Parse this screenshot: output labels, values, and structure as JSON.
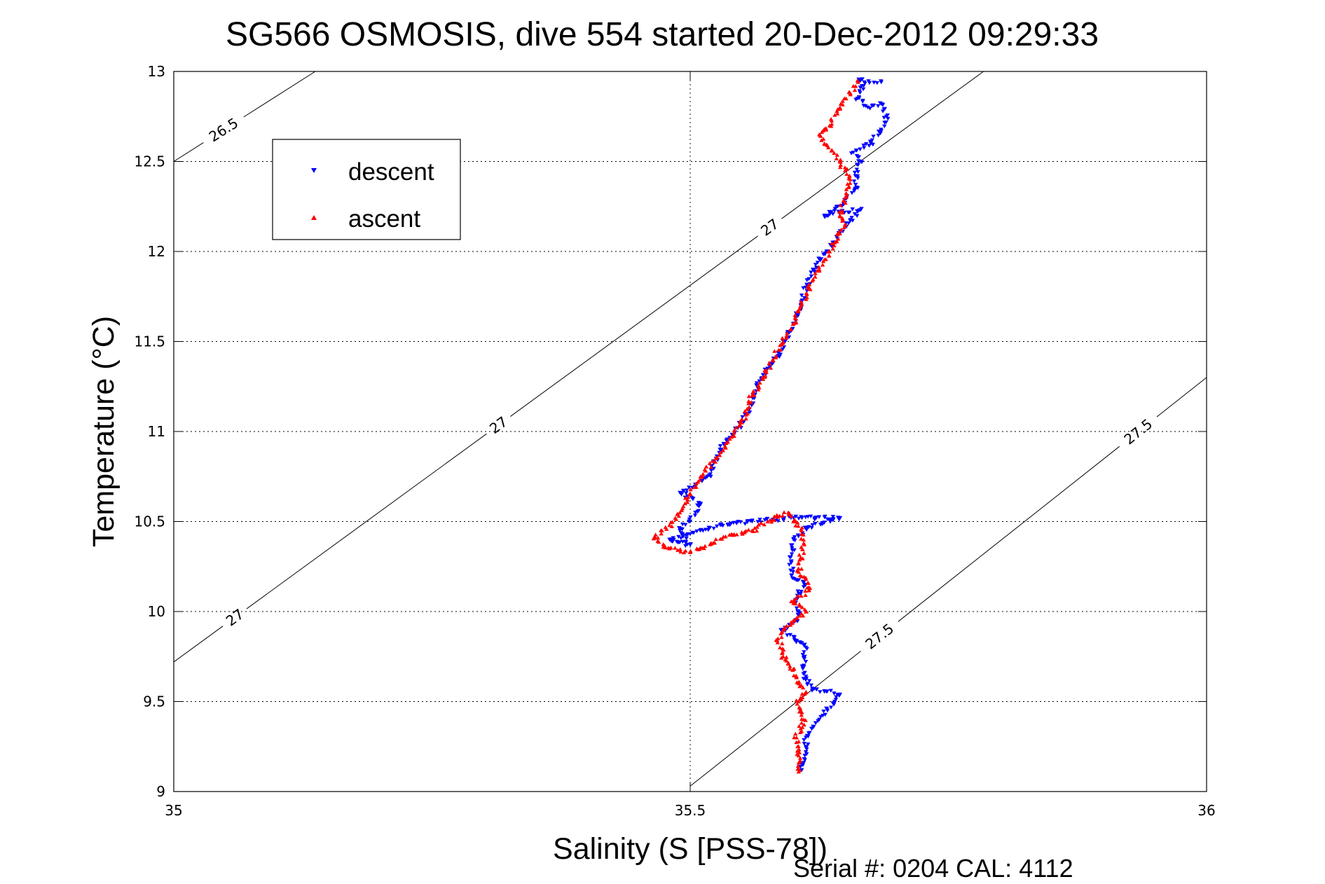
{
  "chart_data": {
    "type": "scatter",
    "title": "SG566 OSMOSIS, dive 554 started 20-Dec-2012 09:29:33",
    "xlabel": "Salinity (S [PSS-78])",
    "ylabel": "Temperature (°C)",
    "xlim": [
      35,
      36
    ],
    "ylim": [
      9,
      13
    ],
    "xticks": [
      "35",
      "35.5",
      "36"
    ],
    "yticks": [
      "9",
      "9.5",
      "10",
      "10.5",
      "11",
      "11.5",
      "12",
      "12.5",
      "13"
    ],
    "grid": true,
    "legend_position": "top-left",
    "footer": "Serial #: 0204  CAL: 4112",
    "contours": [
      {
        "label": "26.5",
        "points": [
          [
            35.0,
            12.5
          ],
          [
            35.137,
            13.0
          ]
        ],
        "labels": [
          {
            "text": "26.5",
            "x": 35.05,
            "y": 12.66
          }
        ]
      },
      {
        "label": "27",
        "points": [
          [
            35.0,
            9.72
          ],
          [
            35.784,
            13.0
          ]
        ],
        "labels": [
          {
            "text": "27",
            "x": 35.06,
            "y": 9.96
          },
          {
            "text": "27",
            "x": 35.31,
            "y": 11.07
          },
          {
            "text": "27",
            "x": 35.575,
            "y": 12.15
          }
        ]
      },
      {
        "label": "27.5",
        "points": [
          [
            35.5,
            9.03
          ],
          [
            36.0,
            11.3
          ]
        ],
        "labels": [
          {
            "text": "27.5",
            "x": 35.685,
            "y": 9.85
          },
          {
            "text": "27.5",
            "x": 35.935,
            "y": 10.99
          }
        ]
      }
    ],
    "series": [
      {
        "name": "descent",
        "color": "#0000ff",
        "marker": "triangle-down",
        "track": [
          [
            35.608,
            9.12
          ],
          [
            35.612,
            9.2
          ],
          [
            35.612,
            9.3
          ],
          [
            35.625,
            9.4
          ],
          [
            35.64,
            9.5
          ],
          [
            35.645,
            9.54
          ],
          [
            35.62,
            9.57
          ],
          [
            35.612,
            9.62
          ],
          [
            35.61,
            9.7
          ],
          [
            35.612,
            9.8
          ],
          [
            35.6,
            9.86
          ],
          [
            35.59,
            9.9
          ],
          [
            35.602,
            9.95
          ],
          [
            35.605,
            10.0
          ],
          [
            35.6,
            10.05
          ],
          [
            35.605,
            10.1
          ],
          [
            35.612,
            10.15
          ],
          [
            35.598,
            10.2
          ],
          [
            35.598,
            10.28
          ],
          [
            35.6,
            10.4
          ],
          [
            35.615,
            10.47
          ],
          [
            35.645,
            10.52
          ],
          [
            35.6,
            10.52
          ],
          [
            35.56,
            10.5
          ],
          [
            35.53,
            10.48
          ],
          [
            35.5,
            10.43
          ],
          [
            35.48,
            10.4
          ],
          [
            35.5,
            10.37
          ],
          [
            35.49,
            10.45
          ],
          [
            35.5,
            10.5
          ],
          [
            35.51,
            10.6
          ],
          [
            35.49,
            10.66
          ],
          [
            35.52,
            10.75
          ],
          [
            35.525,
            10.85
          ],
          [
            35.535,
            10.95
          ],
          [
            35.55,
            11.05
          ],
          [
            35.56,
            11.15
          ],
          [
            35.565,
            11.25
          ],
          [
            35.575,
            11.35
          ],
          [
            35.585,
            11.42
          ],
          [
            35.592,
            11.5
          ],
          [
            35.6,
            11.6
          ],
          [
            35.607,
            11.7
          ],
          [
            35.612,
            11.8
          ],
          [
            35.62,
            11.9
          ],
          [
            35.632,
            12.0
          ],
          [
            35.645,
            12.1
          ],
          [
            35.655,
            12.17
          ],
          [
            35.665,
            12.23
          ],
          [
            35.645,
            12.22
          ],
          [
            35.63,
            12.2
          ],
          [
            35.65,
            12.27
          ],
          [
            35.66,
            12.35
          ],
          [
            35.66,
            12.42
          ],
          [
            35.665,
            12.5
          ],
          [
            35.658,
            12.55
          ],
          [
            35.675,
            12.6
          ],
          [
            35.685,
            12.67
          ],
          [
            35.69,
            12.75
          ],
          [
            35.685,
            12.82
          ],
          [
            35.672,
            12.8
          ],
          [
            35.662,
            12.85
          ],
          [
            35.668,
            12.92
          ],
          [
            35.665,
            12.95
          ],
          [
            35.685,
            12.94
          ]
        ],
        "values": [
          [
            35.608,
            9.12
          ],
          [
            35.61,
            9.16
          ],
          [
            35.611,
            9.2
          ],
          [
            35.612,
            9.25
          ],
          [
            35.612,
            9.3
          ],
          [
            35.618,
            9.35
          ],
          [
            35.625,
            9.4
          ],
          [
            35.633,
            9.45
          ],
          [
            35.64,
            9.5
          ],
          [
            35.645,
            9.54
          ],
          [
            35.632,
            9.555
          ],
          [
            35.62,
            9.57
          ],
          [
            35.614,
            9.6
          ],
          [
            35.612,
            9.62
          ],
          [
            35.611,
            9.66
          ],
          [
            35.61,
            9.7
          ],
          [
            35.611,
            9.75
          ],
          [
            35.612,
            9.8
          ],
          [
            35.606,
            9.83
          ],
          [
            35.6,
            9.86
          ],
          [
            35.59,
            9.9
          ],
          [
            35.596,
            9.925
          ],
          [
            35.602,
            9.95
          ],
          [
            35.605,
            10.0
          ],
          [
            35.6,
            10.05
          ],
          [
            35.605,
            10.1
          ],
          [
            35.612,
            10.15
          ],
          [
            35.605,
            10.175
          ],
          [
            35.598,
            10.2
          ],
          [
            35.598,
            10.28
          ],
          [
            35.599,
            10.34
          ],
          [
            35.6,
            10.4
          ],
          [
            35.615,
            10.47
          ],
          [
            35.63,
            10.495
          ],
          [
            35.645,
            10.52
          ],
          [
            35.622,
            10.52
          ],
          [
            35.6,
            10.52
          ],
          [
            35.58,
            10.51
          ],
          [
            35.56,
            10.5
          ],
          [
            35.545,
            10.49
          ],
          [
            35.53,
            10.48
          ],
          [
            35.515,
            10.455
          ],
          [
            35.5,
            10.43
          ],
          [
            35.48,
            10.4
          ],
          [
            35.49,
            10.385
          ],
          [
            35.5,
            10.37
          ],
          [
            35.49,
            10.45
          ],
          [
            35.5,
            10.5
          ],
          [
            35.505,
            10.55
          ],
          [
            35.51,
            10.6
          ],
          [
            35.49,
            10.66
          ],
          [
            35.505,
            10.705
          ],
          [
            35.52,
            10.75
          ],
          [
            35.525,
            10.85
          ],
          [
            35.53,
            10.9
          ],
          [
            35.535,
            10.95
          ],
          [
            35.55,
            11.05
          ],
          [
            35.555,
            11.1
          ],
          [
            35.56,
            11.15
          ],
          [
            35.565,
            11.25
          ],
          [
            35.575,
            11.35
          ],
          [
            35.585,
            11.42
          ],
          [
            35.592,
            11.5
          ],
          [
            35.596,
            11.55
          ],
          [
            35.6,
            11.6
          ],
          [
            35.607,
            11.7
          ],
          [
            35.612,
            11.8
          ],
          [
            35.62,
            11.9
          ],
          [
            35.632,
            12.0
          ],
          [
            35.638,
            12.05
          ],
          [
            35.645,
            12.1
          ],
          [
            35.655,
            12.17
          ],
          [
            35.665,
            12.23
          ],
          [
            35.645,
            12.22
          ],
          [
            35.63,
            12.2
          ],
          [
            35.65,
            12.27
          ],
          [
            35.66,
            12.35
          ],
          [
            35.66,
            12.42
          ],
          [
            35.665,
            12.5
          ],
          [
            35.658,
            12.55
          ],
          [
            35.675,
            12.6
          ],
          [
            35.685,
            12.67
          ],
          [
            35.69,
            12.75
          ],
          [
            35.685,
            12.82
          ],
          [
            35.672,
            12.8
          ],
          [
            35.662,
            12.85
          ],
          [
            35.668,
            12.92
          ],
          [
            35.665,
            12.95
          ],
          [
            35.685,
            12.94
          ]
        ]
      },
      {
        "name": "ascent",
        "color": "#ff0000",
        "marker": "triangle-up",
        "track": [
          [
            35.605,
            9.11
          ],
          [
            35.605,
            9.2
          ],
          [
            35.603,
            9.3
          ],
          [
            35.61,
            9.4
          ],
          [
            35.605,
            9.5
          ],
          [
            35.612,
            9.55
          ],
          [
            35.605,
            9.6
          ],
          [
            35.6,
            9.68
          ],
          [
            35.59,
            9.75
          ],
          [
            35.585,
            9.85
          ],
          [
            35.59,
            9.9
          ],
          [
            35.6,
            9.95
          ],
          [
            35.612,
            10.0
          ],
          [
            35.6,
            10.06
          ],
          [
            35.615,
            10.12
          ],
          [
            35.612,
            10.18
          ],
          [
            35.605,
            10.22
          ],
          [
            35.607,
            10.3
          ],
          [
            35.61,
            10.38
          ],
          [
            35.608,
            10.45
          ],
          [
            35.595,
            10.55
          ],
          [
            35.575,
            10.5
          ],
          [
            35.56,
            10.45
          ],
          [
            35.54,
            10.43
          ],
          [
            35.52,
            10.38
          ],
          [
            35.5,
            10.33
          ],
          [
            35.48,
            10.35
          ],
          [
            35.465,
            10.41
          ],
          [
            35.48,
            10.48
          ],
          [
            35.49,
            10.55
          ],
          [
            35.5,
            10.65
          ],
          [
            35.51,
            10.75
          ],
          [
            35.525,
            10.85
          ],
          [
            35.54,
            10.97
          ],
          [
            35.55,
            11.05
          ],
          [
            35.56,
            11.2
          ],
          [
            35.57,
            11.3
          ],
          [
            35.58,
            11.4
          ],
          [
            35.59,
            11.5
          ],
          [
            35.6,
            11.6
          ],
          [
            35.607,
            11.7
          ],
          [
            35.615,
            11.8
          ],
          [
            35.625,
            11.9
          ],
          [
            35.635,
            12.0
          ],
          [
            35.645,
            12.1
          ],
          [
            35.65,
            12.15
          ],
          [
            35.645,
            12.2
          ],
          [
            35.65,
            12.3
          ],
          [
            35.655,
            12.4
          ],
          [
            35.645,
            12.5
          ],
          [
            35.63,
            12.6
          ],
          [
            35.625,
            12.65
          ],
          [
            35.635,
            12.7
          ],
          [
            35.645,
            12.8
          ],
          [
            35.655,
            12.88
          ],
          [
            35.662,
            12.95
          ]
        ],
        "values": [
          [
            35.605,
            9.11
          ],
          [
            35.605,
            9.16
          ],
          [
            35.605,
            9.2
          ],
          [
            35.604,
            9.25
          ],
          [
            35.603,
            9.3
          ],
          [
            35.607,
            9.35
          ],
          [
            35.61,
            9.4
          ],
          [
            35.607,
            9.45
          ],
          [
            35.605,
            9.5
          ],
          [
            35.612,
            9.55
          ],
          [
            35.605,
            9.6
          ],
          [
            35.603,
            9.64
          ],
          [
            35.6,
            9.68
          ],
          [
            35.595,
            9.715
          ],
          [
            35.59,
            9.75
          ],
          [
            35.587,
            9.8
          ],
          [
            35.585,
            9.85
          ],
          [
            35.59,
            9.9
          ],
          [
            35.6,
            9.95
          ],
          [
            35.612,
            10.0
          ],
          [
            35.6,
            10.06
          ],
          [
            35.615,
            10.12
          ],
          [
            35.612,
            10.18
          ],
          [
            35.605,
            10.22
          ],
          [
            35.607,
            10.3
          ],
          [
            35.61,
            10.38
          ],
          [
            35.608,
            10.45
          ],
          [
            35.6,
            10.5
          ],
          [
            35.595,
            10.55
          ],
          [
            35.585,
            10.525
          ],
          [
            35.575,
            10.5
          ],
          [
            35.56,
            10.45
          ],
          [
            35.55,
            10.44
          ],
          [
            35.54,
            10.43
          ],
          [
            35.52,
            10.38
          ],
          [
            35.51,
            10.355
          ],
          [
            35.5,
            10.33
          ],
          [
            35.48,
            10.35
          ],
          [
            35.465,
            10.41
          ],
          [
            35.48,
            10.48
          ],
          [
            35.49,
            10.55
          ],
          [
            35.495,
            10.6
          ],
          [
            35.5,
            10.65
          ],
          [
            35.51,
            10.75
          ],
          [
            35.525,
            10.85
          ],
          [
            35.54,
            10.97
          ],
          [
            35.55,
            11.05
          ],
          [
            35.555,
            11.125
          ],
          [
            35.56,
            11.2
          ],
          [
            35.57,
            11.3
          ],
          [
            35.58,
            11.4
          ],
          [
            35.59,
            11.5
          ],
          [
            35.6,
            11.6
          ],
          [
            35.607,
            11.7
          ],
          [
            35.615,
            11.8
          ],
          [
            35.625,
            11.9
          ],
          [
            35.635,
            12.0
          ],
          [
            35.64,
            12.05
          ],
          [
            35.645,
            12.1
          ],
          [
            35.65,
            12.15
          ],
          [
            35.645,
            12.2
          ],
          [
            35.65,
            12.3
          ],
          [
            35.655,
            12.4
          ],
          [
            35.65,
            12.45
          ],
          [
            35.645,
            12.5
          ],
          [
            35.63,
            12.6
          ],
          [
            35.625,
            12.65
          ],
          [
            35.635,
            12.7
          ],
          [
            35.645,
            12.8
          ],
          [
            35.655,
            12.88
          ],
          [
            35.662,
            12.95
          ]
        ]
      }
    ]
  }
}
